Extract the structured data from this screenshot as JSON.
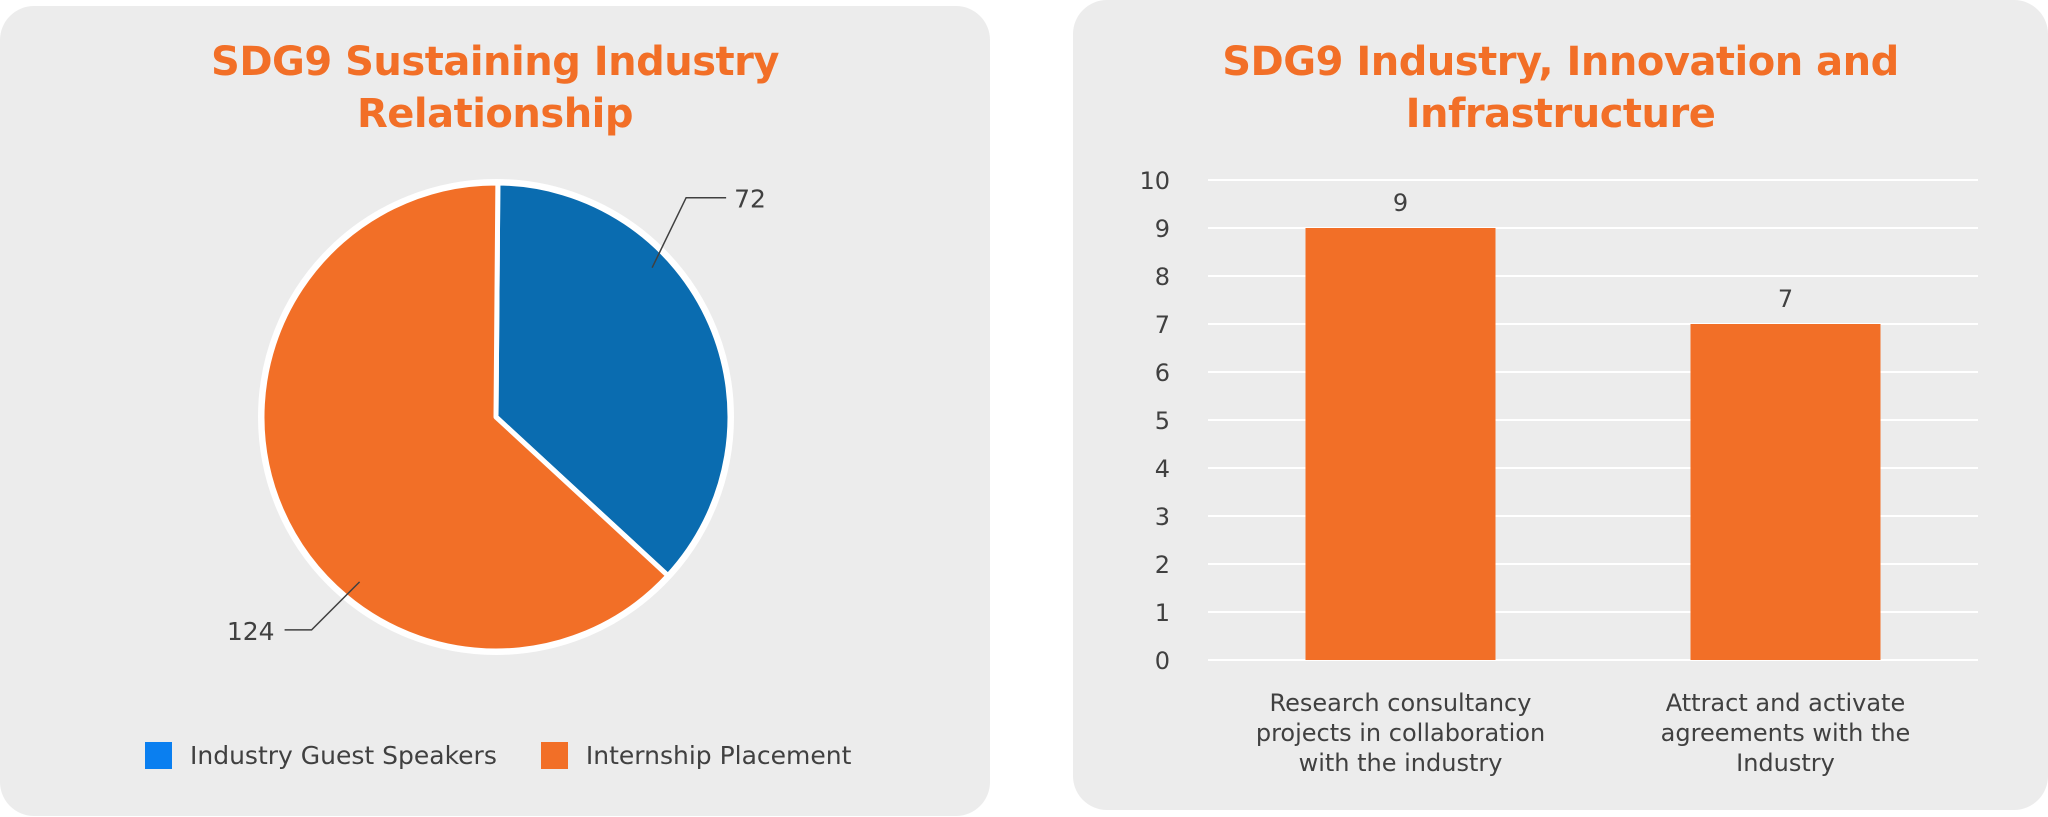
{
  "left_chart": {
    "title_line1": "SDG9 Sustaining Industry",
    "title_line2": "Relationship",
    "legend": [
      {
        "label": "Industry Guest Speakers",
        "color": "#0a7ff0"
      },
      {
        "label": "Internship Placement",
        "color": "#f26f27"
      }
    ]
  },
  "right_chart": {
    "title_line1": "SDG9 Industry, Innovation and",
    "title_line2": "Infrastructure"
  },
  "chart_data": [
    {
      "type": "pie",
      "title": "SDG9 Sustaining Industry Relationship",
      "slices": [
        {
          "label": "Industry Guest Speakers",
          "value": 72,
          "color": "#0a6cb0"
        },
        {
          "label": "Internship Placement",
          "value": 124,
          "color": "#f26f27"
        }
      ],
      "data_labels": [
        "72",
        "124"
      ],
      "legend": "bottom"
    },
    {
      "type": "bar",
      "title": "SDG9 Industry, Innovation and Infrastructure",
      "categories": [
        [
          "Research consultancy",
          "projects in collaboration",
          "with the industry"
        ],
        [
          "Attract and activate",
          "agreements with the",
          "Industry"
        ]
      ],
      "values": [
        9,
        7
      ],
      "ylim": [
        0,
        10
      ],
      "yticks": [
        "0",
        "1",
        "2",
        "3",
        "4",
        "5",
        "6",
        "7",
        "8",
        "9",
        "10"
      ],
      "grid": true,
      "bar_color": "#f26f27"
    }
  ]
}
